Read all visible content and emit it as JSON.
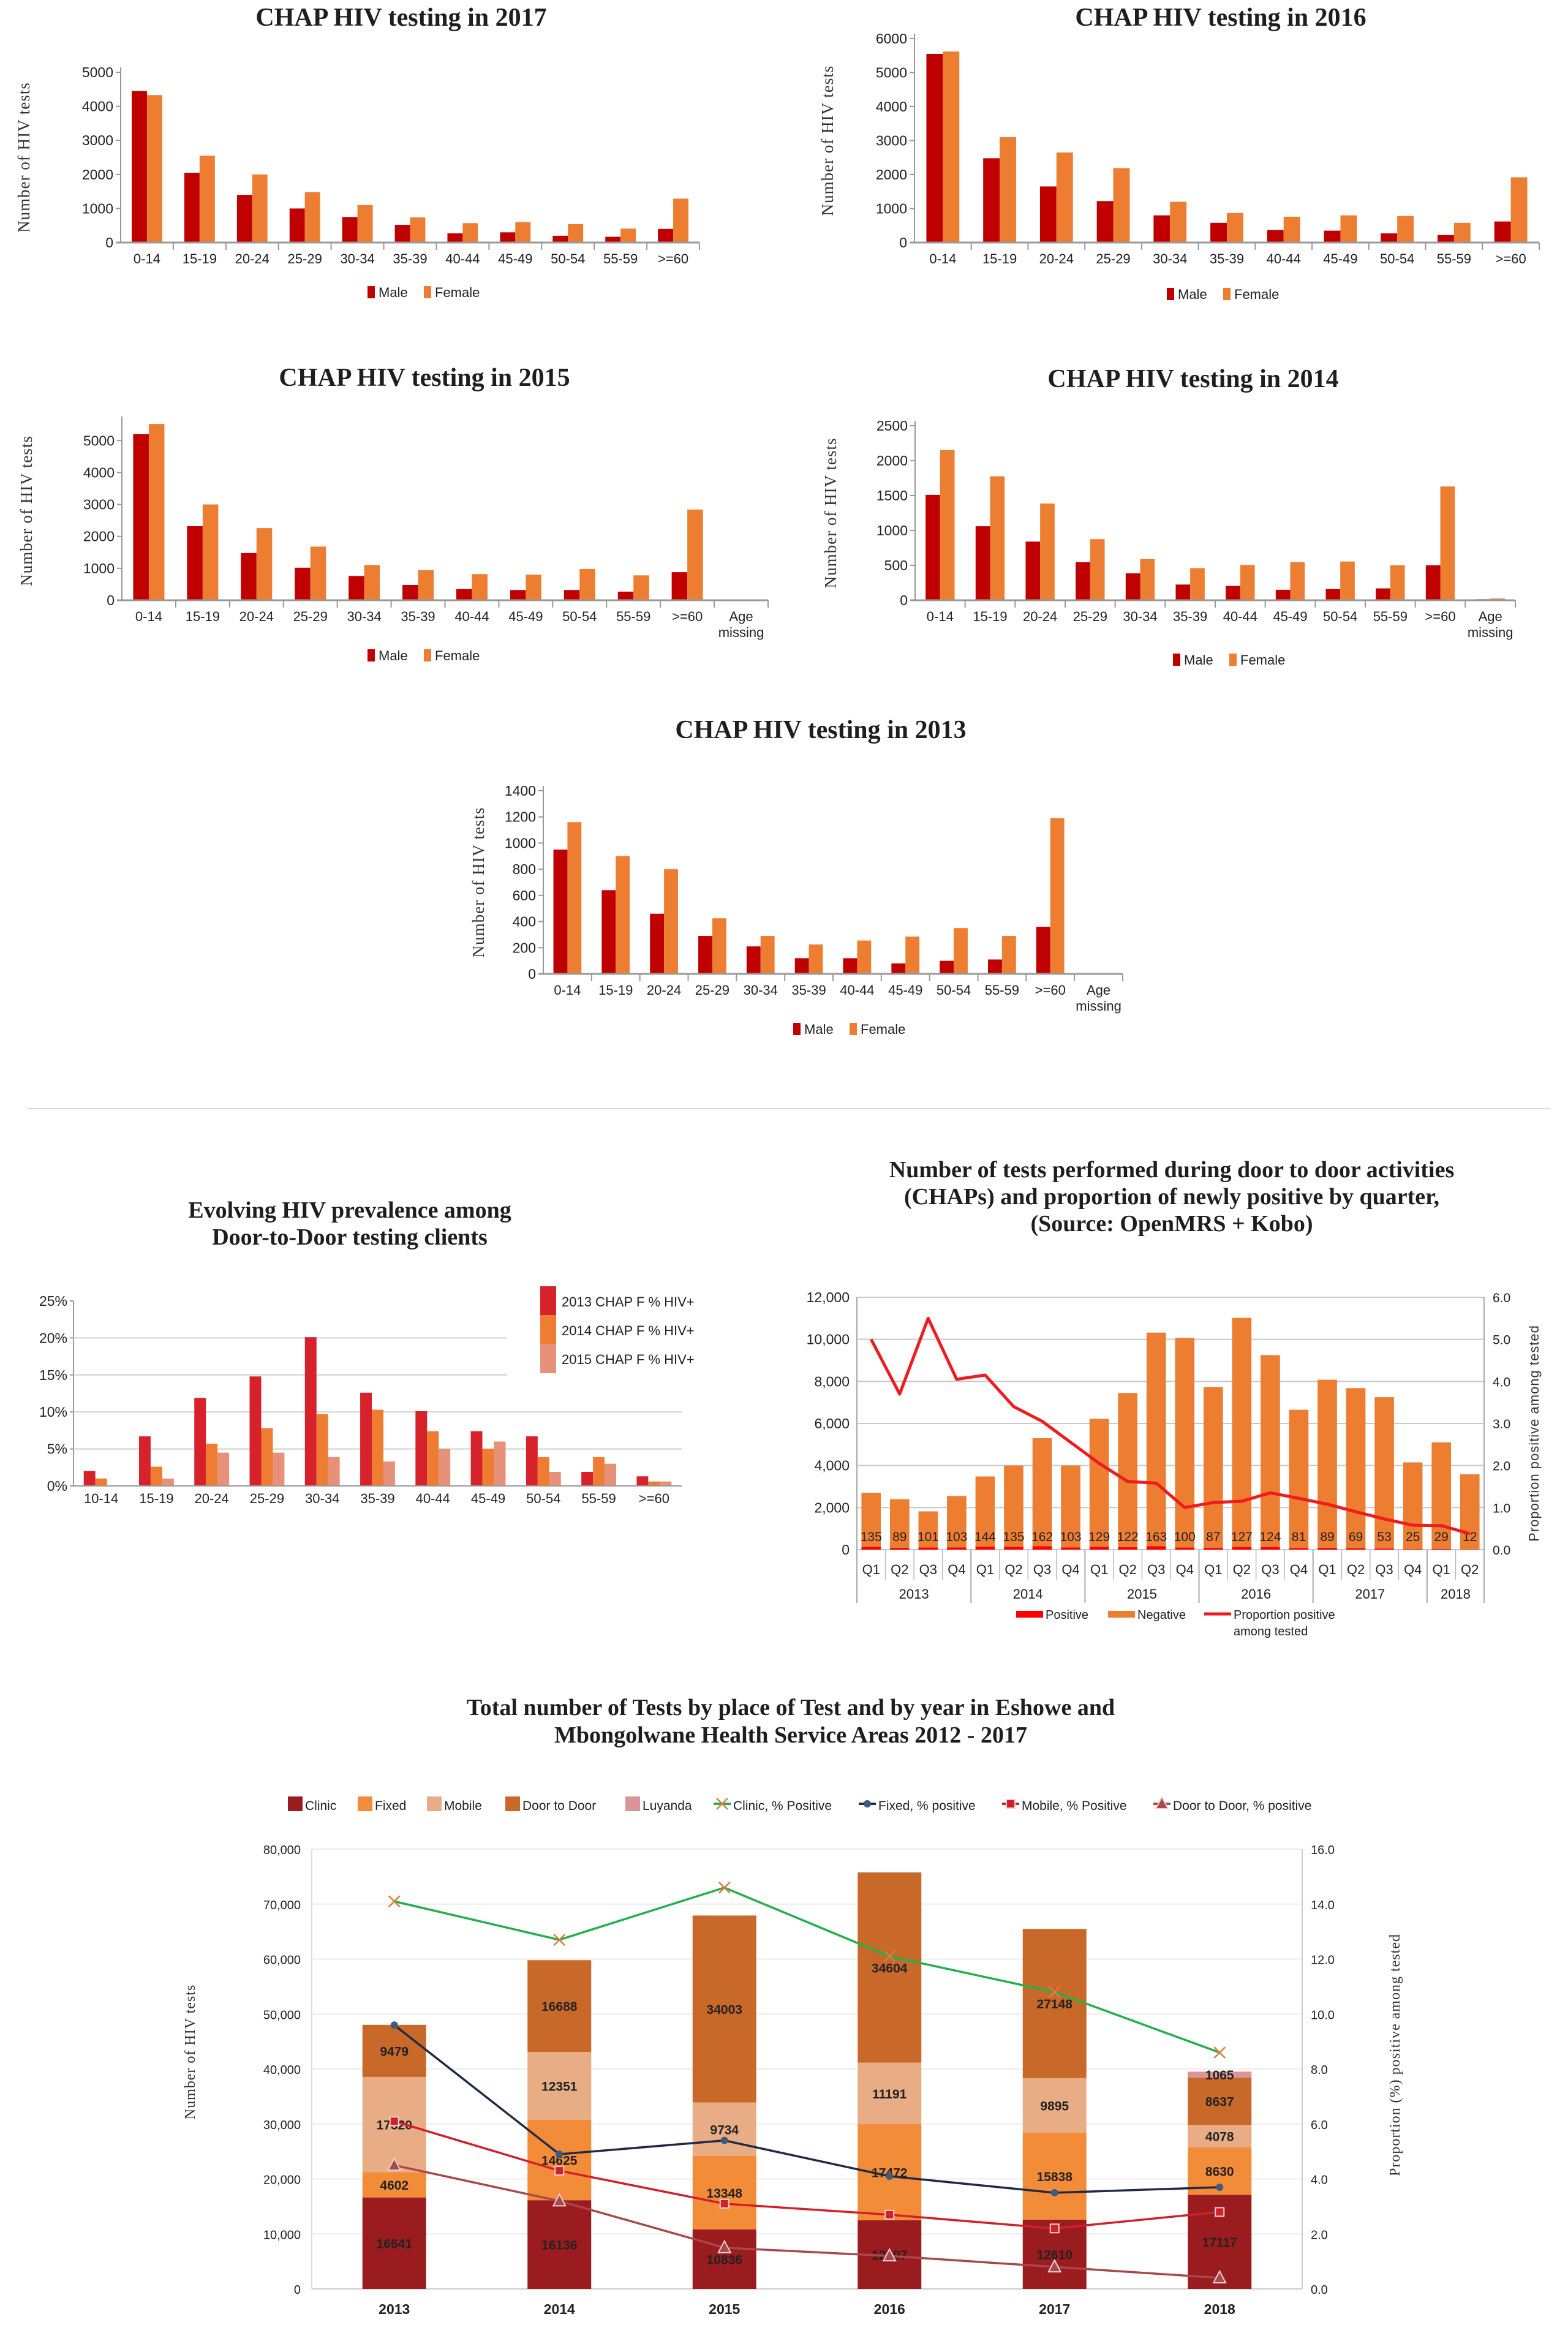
{
  "chart_data": [
    {
      "type": "bar",
      "title": "CHAP HIV testing in 2017",
      "ylabel": "Number of HIV tests",
      "categories": [
        "0-14",
        "15-19",
        "20-24",
        "25-29",
        "30-34",
        "35-39",
        "40-44",
        "45-49",
        "50-54",
        "55-59",
        ">=60"
      ],
      "series": [
        {
          "name": "Male",
          "color": "#c00000",
          "values": [
            4450,
            2050,
            1400,
            1000,
            750,
            520,
            270,
            300,
            200,
            170,
            400
          ]
        },
        {
          "name": "Female",
          "color": "#ed7d31",
          "values": [
            4330,
            2550,
            2000,
            1480,
            1100,
            740,
            570,
            600,
            540,
            410,
            1290
          ]
        }
      ],
      "ylim": [
        0,
        5000
      ],
      "yticks": [
        0,
        1000,
        2000,
        3000,
        4000,
        5000
      ],
      "legend": "bottom"
    },
    {
      "type": "bar",
      "title": "CHAP HIV testing in 2016",
      "ylabel": "Number of HIV tests",
      "categories": [
        "0-14",
        "15-19",
        "20-24",
        "25-29",
        "30-34",
        "35-39",
        "40-44",
        "45-49",
        "50-54",
        "55-59",
        ">=60"
      ],
      "series": [
        {
          "name": "Male",
          "color": "#c00000",
          "values": [
            5550,
            2480,
            1650,
            1220,
            800,
            580,
            370,
            350,
            270,
            220,
            620
          ]
        },
        {
          "name": "Female",
          "color": "#ed7d31",
          "values": [
            5620,
            3100,
            2650,
            2190,
            1200,
            870,
            760,
            800,
            780,
            580,
            1920
          ]
        }
      ],
      "ylim": [
        0,
        6000
      ],
      "yticks": [
        0,
        1000,
        2000,
        3000,
        4000,
        5000,
        6000
      ],
      "legend": "bottom"
    },
    {
      "type": "bar",
      "title": "CHAP HIV testing in 2015",
      "ylabel": "Number of HIV tests",
      "categories": [
        "0-14",
        "15-19",
        "20-24",
        "25-29",
        "30-34",
        "35-39",
        "40-44",
        "45-49",
        "50-54",
        "55-59",
        ">=60",
        "Age missing"
      ],
      "series": [
        {
          "name": "Male",
          "color": "#c00000",
          "values": [
            5200,
            2320,
            1480,
            1020,
            760,
            480,
            350,
            320,
            320,
            270,
            880,
            0
          ]
        },
        {
          "name": "Female",
          "color": "#ed7d31",
          "values": [
            5520,
            3000,
            2260,
            1680,
            1100,
            940,
            820,
            800,
            980,
            780,
            2840,
            0
          ]
        }
      ],
      "ylim": [
        0,
        5600
      ],
      "yticks": [
        0,
        1000,
        2000,
        3000,
        4000,
        5000
      ],
      "legend": "bottom"
    },
    {
      "type": "bar",
      "title": "CHAP HIV testing in 2014",
      "ylabel": "Number of HIV tests",
      "categories": [
        "0-14",
        "15-19",
        "20-24",
        "25-29",
        "30-34",
        "35-39",
        "40-44",
        "45-49",
        "50-54",
        "55-59",
        ">=60",
        "Age missing"
      ],
      "series": [
        {
          "name": "Male",
          "color": "#c00000",
          "values": [
            1510,
            1060,
            840,
            545,
            385,
            225,
            205,
            150,
            160,
            170,
            500,
            15
          ]
        },
        {
          "name": "Female",
          "color": "#ed7d31",
          "values": [
            2150,
            1775,
            1385,
            875,
            590,
            460,
            505,
            545,
            555,
            500,
            1630,
            25
          ]
        }
      ],
      "ylim": [
        0,
        2500
      ],
      "yticks": [
        0,
        500,
        1000,
        1500,
        2000,
        2500
      ],
      "legend": "bottom"
    },
    {
      "type": "bar",
      "title": "CHAP HIV testing in 2013",
      "ylabel": "Number of HIV tests",
      "categories": [
        "0-14",
        "15-19",
        "20-24",
        "25-29",
        "30-34",
        "35-39",
        "40-44",
        "45-49",
        "50-54",
        "55-59",
        ">=60",
        "Age missing"
      ],
      "series": [
        {
          "name": "Male",
          "color": "#c00000",
          "values": [
            950,
            640,
            460,
            290,
            210,
            120,
            120,
            80,
            100,
            110,
            360,
            0
          ]
        },
        {
          "name": "Female",
          "color": "#ed7d31",
          "values": [
            1160,
            900,
            800,
            425,
            290,
            225,
            255,
            285,
            350,
            290,
            1190,
            0
          ]
        }
      ],
      "ylim": [
        0,
        1400
      ],
      "yticks": [
        0,
        200,
        400,
        600,
        800,
        1000,
        1200,
        1400
      ],
      "legend": "bottom"
    },
    {
      "type": "bar",
      "title_lines": [
        "Evolving HIV prevalence among",
        "Door-to-Door testing clients"
      ],
      "categories": [
        "10-14",
        "15-19",
        "20-24",
        "25-29",
        "30-34",
        "35-39",
        "40-44",
        "45-49",
        "50-54",
        "55-59",
        ">=60"
      ],
      "series": [
        {
          "name": "2013 CHAP F % HIV+",
          "color": "#d7222b",
          "values": [
            2.0,
            6.7,
            11.9,
            14.8,
            20.1,
            12.6,
            10.1,
            7.4,
            6.7,
            1.9,
            1.3
          ]
        },
        {
          "name": "2014 CHAP F % HIV+",
          "color": "#ee7d31",
          "values": [
            1.0,
            2.6,
            5.7,
            7.8,
            9.7,
            10.3,
            7.4,
            5.0,
            3.9,
            3.9,
            0.6
          ]
        },
        {
          "name": "2015 CHAP F % HIV+",
          "color": "#e8917a",
          "values": [
            0,
            1.0,
            4.5,
            4.5,
            3.9,
            3.3,
            5.0,
            6.0,
            1.9,
            3.0,
            0.6
          ]
        }
      ],
      "ylim": [
        0,
        25
      ],
      "yticks": [
        0,
        5,
        10,
        15,
        20,
        25
      ],
      "ytick_labels": [
        "0%",
        "5%",
        "10%",
        "15%",
        "20%",
        "25%"
      ],
      "grid": true,
      "legend": "top-right"
    },
    {
      "type": "bar",
      "title_lines": [
        "Number of tests performed during door to door activities",
        "(CHAPs) and proportion of newly positive by quarter,",
        "(Source: OpenMRS +  Kobo)"
      ],
      "quarters": [
        "Q1",
        "Q2",
        "Q3",
        "Q4",
        "Q1",
        "Q2",
        "Q3",
        "Q4",
        "Q1",
        "Q2",
        "Q3",
        "Q4",
        "Q1",
        "Q2",
        "Q3",
        "Q4",
        "Q1",
        "Q2",
        "Q3",
        "Q4",
        "Q1",
        "Q2"
      ],
      "years": [
        {
          "label": "2013",
          "quarters": 4
        },
        {
          "label": "2014",
          "quarters": 4
        },
        {
          "label": "2015",
          "quarters": 4
        },
        {
          "label": "2016",
          "quarters": 4
        },
        {
          "label": "2017",
          "quarters": 4
        },
        {
          "label": "2018",
          "quarters": 2
        }
      ],
      "series": [
        {
          "name": "Positive",
          "kind": "stacked-bar",
          "color": "#ff0000",
          "values": [
            135,
            89,
            101,
            103,
            144,
            135,
            162,
            103,
            129,
            122,
            163,
            100,
            87,
            127,
            124,
            81,
            89,
            69,
            53,
            25,
            29,
            12
          ]
        },
        {
          "name": "Negative",
          "kind": "stacked-bar",
          "color": "#ed7d31",
          "values": [
            2565,
            2311,
            1719,
            2447,
            3336,
            3865,
            5138,
            3897,
            6091,
            7328,
            10157,
            9970,
            7643,
            10893,
            9126,
            6569,
            7991,
            7611,
            7197,
            4125,
            5071,
            3568
          ]
        },
        {
          "name": "Proportion positive among tested",
          "kind": "line",
          "axis": "right",
          "color": "#ee1c1c",
          "values": [
            5.0,
            3.7,
            5.5,
            4.05,
            4.15,
            3.4,
            3.05,
            2.55,
            2.05,
            1.62,
            1.58,
            1.0,
            1.12,
            1.15,
            1.35,
            1.22,
            1.08,
            0.9,
            0.73,
            0.58,
            0.57,
            0.38
          ]
        }
      ],
      "legend_labels": [
        "Positive",
        "Negative",
        "Proportion positive",
        "among tested"
      ],
      "ylim": [
        0,
        12000
      ],
      "yticks": [
        0,
        2000,
        4000,
        6000,
        8000,
        10000,
        12000
      ],
      "ytick_labels": [
        "0",
        "2,000",
        "4,000",
        "6,000",
        "8,000",
        "10,000",
        "12,000"
      ],
      "y2lim": [
        0,
        6
      ],
      "y2tick_labels": [
        "0.0",
        "1.0",
        "2.0",
        "3.0",
        "4.0",
        "5.0",
        "6.0"
      ],
      "y2label": "Proportion positive among tested",
      "grid": true,
      "legend": "bottom"
    },
    {
      "type": "bar",
      "title_lines": [
        "Total number of Tests by place of Test and by year in Eshowe and",
        "Mbongolwane Health Service Areas 2012 - 2017"
      ],
      "categories": [
        "2013",
        "2014",
        "2015",
        "2016",
        "2017",
        "2018"
      ],
      "series": [
        {
          "name": "Clinic",
          "kind": "stacked-bar",
          "color": "#9b1c1f",
          "label_color": "#ffffff",
          "values": [
            16641,
            16136,
            10836,
            12497,
            12610,
            17117
          ]
        },
        {
          "name": "Fixed",
          "kind": "stacked-bar",
          "color": "#f28c38",
          "label_color": "#333333",
          "values": [
            4602,
            14625,
            13348,
            17472,
            15838,
            8630
          ]
        },
        {
          "name": "Mobile",
          "kind": "stacked-bar",
          "color": "#e8ad85",
          "label_color": "#333333",
          "values": [
            17320,
            12351,
            9734,
            11191,
            9895,
            4078
          ]
        },
        {
          "name": "Door to Door",
          "kind": "stacked-bar",
          "color": "#c8692a",
          "label_color": "#333333",
          "values": [
            9479,
            16688,
            34003,
            34604,
            27148,
            8637
          ]
        },
        {
          "name": "Luyanda",
          "kind": "stacked-bar",
          "color": "#d9959a",
          "label_color": "#333333",
          "values": [
            0,
            0,
            0,
            0,
            0,
            1065
          ]
        },
        {
          "name": "Clinic, % Positive",
          "kind": "line",
          "axis": "right",
          "color": "#22b04b",
          "marker": "x",
          "values": [
            14.1,
            12.7,
            14.6,
            12.1,
            10.8,
            8.6
          ]
        },
        {
          "name": "Fixed, % positive",
          "kind": "line",
          "axis": "right",
          "color": "#1f2a44",
          "marker": "circle",
          "values": [
            9.6,
            4.9,
            5.4,
            4.1,
            3.5,
            3.7
          ]
        },
        {
          "name": "Mobile, % Positive",
          "kind": "line",
          "axis": "right",
          "color": "#d0202a",
          "marker": "square",
          "values": [
            6.1,
            4.3,
            3.1,
            2.7,
            2.2,
            2.8
          ]
        },
        {
          "name": "Door to Door, % positive",
          "kind": "line",
          "axis": "right",
          "color": "#a8474c",
          "marker": "triangle",
          "values": [
            4.5,
            3.2,
            1.5,
            1.2,
            0.8,
            0.4
          ]
        }
      ],
      "ylabel": "Number of HIV tests",
      "ylim": [
        0,
        80000
      ],
      "yticks": [
        0,
        10000,
        20000,
        30000,
        40000,
        50000,
        60000,
        70000,
        80000
      ],
      "ytick_labels": [
        "0",
        "10,000",
        "20,000",
        "30,000",
        "40,000",
        "50,000",
        "60,000",
        "70,000",
        "80,000"
      ],
      "y2lim": [
        0,
        16
      ],
      "y2tick_labels": [
        "0.0",
        "2.0",
        "4.0",
        "6.0",
        "8.0",
        "10.0",
        "12.0",
        "14.0",
        "16.0"
      ],
      "y2label": "Proportion (%) positive among tested",
      "grid": true,
      "legend": "top"
    }
  ]
}
